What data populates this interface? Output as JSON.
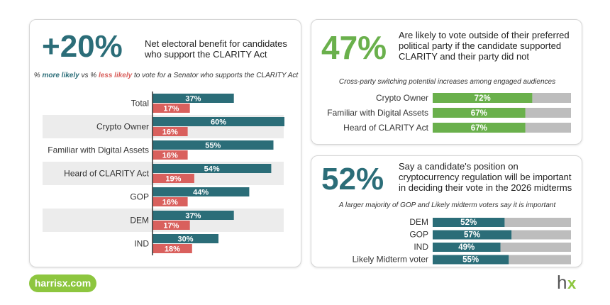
{
  "left_panel": {
    "big_stat": "+20%",
    "big_stat_color": "#2b6d78",
    "description": "Net electoral benefit for candidates who support the CLARITY Act",
    "subtitle_prefix": "% ",
    "subtitle_more": "more likely",
    "subtitle_mid": " vs % ",
    "subtitle_less": "less likely",
    "subtitle_suffix": " to vote for a Senator who supports the CLARITY Act"
  },
  "top_right_panel": {
    "big_stat": "47%",
    "big_stat_color": "#6ab04c",
    "description": "Are likely to vote outside of their preferred political party if the candidate supported CLARITY and their party did not",
    "note": "Cross-party switching potential increases among engaged audiences"
  },
  "bottom_right_panel": {
    "big_stat": "52%",
    "big_stat_color": "#2b6d78",
    "description": "Say a candidate's position on cryptocurrency regulation will be important in deciding their vote in the 2026 midterms",
    "note": "A larger majority of GOP and Likely midterm voters say it is important"
  },
  "footer": {
    "url": "harrisx.com",
    "logo_text_h": "h",
    "logo_text_x": "x"
  },
  "chart_data": [
    {
      "type": "bar",
      "orientation": "horizontal",
      "categories": [
        "Total",
        "Crypto Owner",
        "Familiar with Digital Assets",
        "Heard of CLARITY Act",
        "GOP",
        "DEM",
        "IND"
      ],
      "series": [
        {
          "name": "more likely",
          "values": [
            37,
            60,
            55,
            54,
            44,
            37,
            30
          ],
          "color": "#2b6d78"
        },
        {
          "name": "less likely",
          "values": [
            17,
            16,
            16,
            19,
            16,
            17,
            18
          ],
          "color": "#d9605d"
        }
      ],
      "value_suffix": "%",
      "xlim": [
        0,
        100
      ]
    },
    {
      "type": "bar",
      "orientation": "horizontal",
      "stacked_remainder": true,
      "categories": [
        "Crypto Owner",
        "Familiar with Digital Assets",
        "Heard of CLARITY Act"
      ],
      "values": [
        72,
        67,
        67
      ],
      "value_suffix": "%",
      "bar_color": "#6ab04c",
      "remainder_color": "#bdbdbd",
      "xlim": [
        0,
        100
      ]
    },
    {
      "type": "bar",
      "orientation": "horizontal",
      "stacked_remainder": true,
      "categories": [
        "DEM",
        "GOP",
        "IND",
        "Likely Midterm voter"
      ],
      "values": [
        52,
        57,
        49,
        55
      ],
      "value_suffix": "%",
      "bar_color": "#2b6d78",
      "remainder_color": "#bdbdbd",
      "xlim": [
        0,
        100
      ]
    }
  ]
}
